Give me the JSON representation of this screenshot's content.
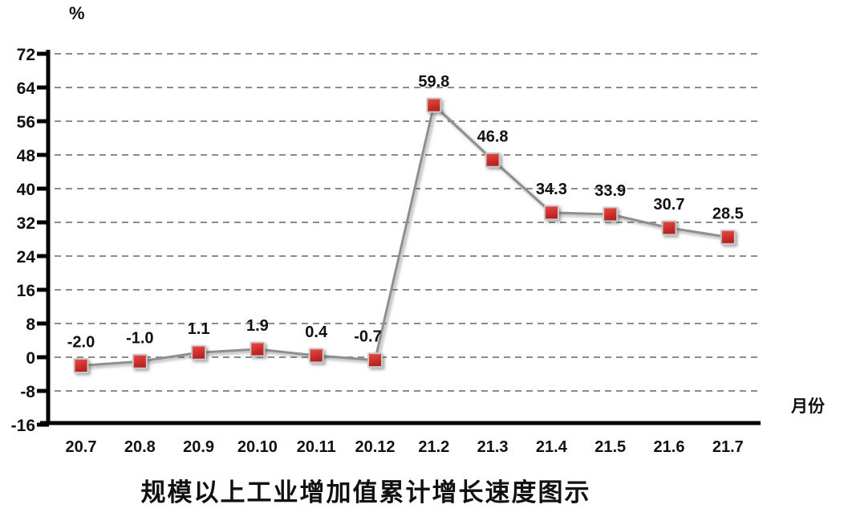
{
  "chart_data": {
    "type": "line",
    "title": "规模以上工业增加值累计增长速度图示",
    "ylabel": "%",
    "xlabel": "月份",
    "categories": [
      "20.7",
      "20.8",
      "20.9",
      "20.10",
      "20.11",
      "20.12",
      "21.2",
      "21.3",
      "21.4",
      "21.5",
      "21.6",
      "21.7"
    ],
    "series": [
      {
        "name": "规模以上工业增加值累计增长速度",
        "values": [
          -2.0,
          -1.0,
          1.1,
          1.9,
          0.4,
          -0.7,
          59.8,
          46.8,
          34.3,
          33.9,
          30.7,
          28.5
        ],
        "labels": [
          "-2.0",
          "-1.0",
          "1.1",
          "1.9",
          "0.4",
          "-0.7",
          "59.8",
          "46.8",
          "34.3",
          "33.9",
          "30.7",
          "28.5"
        ]
      }
    ],
    "ylim": [
      -16,
      72
    ],
    "yticks": [
      72,
      64,
      56,
      48,
      40,
      32,
      24,
      16,
      8,
      0,
      -8,
      -16
    ],
    "grid": "horizontal-dashed",
    "legend_position": "none",
    "colors": {
      "line": "#8f8f8f",
      "marker_fill_top": "#ee4a3e",
      "marker_fill_bottom": "#b32020",
      "marker_border": "#c9c9c9",
      "grid": "#8c8c8c",
      "axis": "#000000",
      "text": "#111111"
    }
  }
}
